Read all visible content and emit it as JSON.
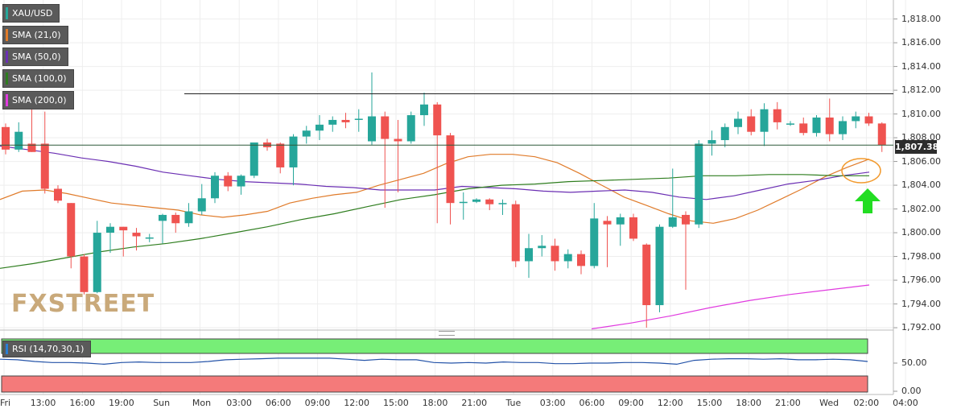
{
  "chart_data": {
    "type": "candlestick",
    "symbol": "XAU/USD",
    "legend": [
      {
        "label": "XAU/USD",
        "color": "#26a69a"
      },
      {
        "label": "SMA (21,0)",
        "color": "#e07b2a"
      },
      {
        "label": "SMA (50,0)",
        "color": "#6b2fb3"
      },
      {
        "label": "SMA (100,0)",
        "color": "#2e7d1e"
      },
      {
        "label": "SMA (200,0)",
        "color": "#e03adf"
      }
    ],
    "x_ticks": [
      "Fri",
      "13:00",
      "16:00",
      "19:00",
      "Sun",
      "Mon",
      "03:00",
      "06:00",
      "09:00",
      "12:00",
      "15:00",
      "18:00",
      "21:00",
      "Tue",
      "03:00",
      "06:00",
      "09:00",
      "12:00",
      "15:00",
      "18:00",
      "21:00",
      "Wed",
      "02:00",
      "04:00"
    ],
    "y_ticks": [
      "1,818.00",
      "1,816.00",
      "1,814.00",
      "1,812.00",
      "1,810.00",
      "1,808.00",
      "1,806.00",
      "1,804.00",
      "1,802.00",
      "1,800.00",
      "1,798.00",
      "1,796.00",
      "1,794.00",
      "1,792.00"
    ],
    "ylim": [
      1791.8,
      1819.6
    ],
    "last_price": "1,807.38",
    "resistance": 1811.7,
    "candles": [
      [
        1808.9,
        1809.2,
        1806.6,
        1807.0
      ],
      [
        1807.0,
        1809.3,
        1806.8,
        1808.5
      ],
      [
        1807.5,
        1810.8,
        1806.8,
        1806.8
      ],
      [
        1807.5,
        1810.2,
        1803.3,
        1803.7
      ],
      [
        1803.7,
        1804.0,
        1802.5,
        1802.7
      ],
      [
        1802.5,
        1802.5,
        1797.0,
        1798.0
      ],
      [
        1798.0,
        1798.2,
        1794.8,
        1795.0
      ],
      [
        1795.0,
        1801.0,
        1794.9,
        1800.0
      ],
      [
        1800.0,
        1800.8,
        1798.3,
        1800.5
      ],
      [
        1800.5,
        1800.5,
        1798.0,
        1800.2
      ],
      [
        1800.0,
        1800.4,
        1798.5,
        1799.7
      ],
      [
        1799.5,
        1799.9,
        1799.2,
        1799.6
      ],
      [
        1801.0,
        1801.6,
        1799.1,
        1801.5
      ],
      [
        1801.5,
        1801.7,
        1800.0,
        1800.8
      ],
      [
        1800.8,
        1802.5,
        1800.5,
        1801.8
      ],
      [
        1801.8,
        1804.1,
        1801.5,
        1802.9
      ],
      [
        1802.9,
        1805.1,
        1802.5,
        1804.8
      ],
      [
        1804.8,
        1805.1,
        1803.5,
        1803.9
      ],
      [
        1803.9,
        1804.9,
        1803.2,
        1804.8
      ],
      [
        1804.8,
        1807.6,
        1804.6,
        1807.6
      ],
      [
        1807.6,
        1807.9,
        1806.9,
        1807.2
      ],
      [
        1807.5,
        1807.6,
        1805.0,
        1805.5
      ],
      [
        1805.5,
        1808.3,
        1804.0,
        1808.1
      ],
      [
        1808.1,
        1809.0,
        1807.5,
        1808.6
      ],
      [
        1808.6,
        1809.9,
        1807.8,
        1809.1
      ],
      [
        1809.1,
        1809.8,
        1808.5,
        1809.5
      ],
      [
        1809.5,
        1810.1,
        1808.8,
        1809.3
      ],
      [
        1809.5,
        1810.4,
        1808.5,
        1809.6
      ],
      [
        1807.7,
        1813.5,
        1807.4,
        1809.8
      ],
      [
        1809.8,
        1810.2,
        1802.1,
        1807.9
      ],
      [
        1807.9,
        1809.5,
        1803.4,
        1807.7
      ],
      [
        1807.7,
        1810.2,
        1807.5,
        1809.9
      ],
      [
        1809.9,
        1811.8,
        1809.0,
        1810.8
      ],
      [
        1810.8,
        1811.0,
        1800.8,
        1808.2
      ],
      [
        1808.2,
        1808.4,
        1800.7,
        1802.5
      ],
      [
        1802.6,
        1803.4,
        1801.1,
        1802.6
      ],
      [
        1802.6,
        1802.9,
        1802.5,
        1802.8
      ],
      [
        1802.8,
        1802.9,
        1801.9,
        1802.4
      ],
      [
        1802.4,
        1802.8,
        1801.5,
        1802.5
      ],
      [
        1802.4,
        1802.7,
        1797.1,
        1797.6
      ],
      [
        1797.6,
        1799.9,
        1796.2,
        1798.7
      ],
      [
        1798.7,
        1799.8,
        1798.0,
        1798.9
      ],
      [
        1798.9,
        1799.5,
        1796.8,
        1797.6
      ],
      [
        1797.6,
        1798.6,
        1797.0,
        1798.2
      ],
      [
        1798.2,
        1798.5,
        1796.5,
        1797.2
      ],
      [
        1797.2,
        1802.5,
        1797.0,
        1801.2
      ],
      [
        1801.0,
        1801.4,
        1797.1,
        1800.7
      ],
      [
        1800.7,
        1801.6,
        1798.9,
        1801.3
      ],
      [
        1801.3,
        1801.6,
        1799.3,
        1799.5
      ],
      [
        1799.0,
        1799.1,
        1792.0,
        1793.9
      ],
      [
        1793.9,
        1800.7,
        1793.3,
        1800.5
      ],
      [
        1800.5,
        1805.4,
        1800.4,
        1801.3
      ],
      [
        1801.5,
        1801.8,
        1795.2,
        1800.7
      ],
      [
        1800.7,
        1807.8,
        1800.4,
        1807.5
      ],
      [
        1807.5,
        1808.6,
        1806.5,
        1807.8
      ],
      [
        1807.8,
        1809.2,
        1807.2,
        1808.9
      ],
      [
        1808.9,
        1810.2,
        1808.3,
        1809.6
      ],
      [
        1809.8,
        1810.4,
        1808.2,
        1808.5
      ],
      [
        1808.5,
        1810.9,
        1807.3,
        1810.4
      ],
      [
        1810.4,
        1811.0,
        1808.7,
        1809.3
      ],
      [
        1809.2,
        1809.4,
        1809.0,
        1809.2
      ],
      [
        1809.2,
        1809.7,
        1808.2,
        1808.4
      ],
      [
        1808.4,
        1809.9,
        1808.1,
        1809.7
      ],
      [
        1809.7,
        1811.3,
        1807.7,
        1808.3
      ],
      [
        1808.3,
        1809.8,
        1807.8,
        1809.4
      ],
      [
        1809.4,
        1810.2,
        1808.8,
        1809.8
      ],
      [
        1809.8,
        1810.1,
        1809.0,
        1809.2
      ],
      [
        1809.2,
        1809.3,
        1806.8,
        1807.4
      ]
    ],
    "sma21": [
      1802.8,
      1803.5,
      1803.6,
      1803.3,
      1802.9,
      1802.5,
      1802.3,
      1802.1,
      1801.9,
      1801.5,
      1801.3,
      1801.5,
      1801.8,
      1802.5,
      1802.9,
      1803.2,
      1803.4,
      1804.0,
      1804.5,
      1805.0,
      1805.8,
      1806.4,
      1806.6,
      1806.6,
      1806.4,
      1805.9,
      1805.0,
      1804.0,
      1803.0,
      1802.3,
      1801.6,
      1801.0,
      1800.8,
      1801.2,
      1801.9,
      1802.8,
      1803.7,
      1804.7,
      1805.5,
      1806.2
    ],
    "sma50": [
      1807.3,
      1807.0,
      1806.7,
      1806.3,
      1806.0,
      1805.6,
      1805.1,
      1804.8,
      1804.5,
      1804.3,
      1804.2,
      1804.1,
      1803.9,
      1803.8,
      1803.6,
      1803.6,
      1803.6,
      1803.9,
      1803.8,
      1803.7,
      1803.5,
      1803.4,
      1803.5,
      1803.6,
      1803.4,
      1803.0,
      1802.8,
      1803.1,
      1803.6,
      1804.1,
      1804.4,
      1804.8,
      1805.1
    ],
    "sma100": [
      1797.0,
      1797.4,
      1797.9,
      1798.4,
      1798.8,
      1799.1,
      1799.5,
      1800.0,
      1800.5,
      1801.1,
      1801.6,
      1802.2,
      1802.8,
      1803.2,
      1803.7,
      1804.0,
      1804.1,
      1804.3,
      1804.4,
      1804.5,
      1804.6,
      1804.8,
      1804.8,
      1804.9,
      1804.9,
      1804.8,
      1804.8
    ],
    "sma200": [
      1791.9,
      1792.4,
      1793.0,
      1793.7,
      1794.3,
      1794.8,
      1795.2,
      1795.6
    ],
    "rsi_ticks": [
      "50.00",
      "0.00"
    ],
    "rsi_label": "RSI (14,70,30,1)",
    "rsi": [
      57,
      56,
      53,
      51,
      51,
      50,
      48,
      51,
      52,
      51,
      51,
      51,
      53,
      56,
      57,
      58,
      59,
      59,
      59,
      59,
      57,
      55,
      57,
      56,
      56,
      51,
      50,
      51,
      50,
      52,
      51,
      51,
      49,
      49,
      50,
      50,
      51,
      51,
      50,
      48,
      55,
      57,
      58,
      58,
      57,
      58,
      56,
      56,
      57,
      56,
      53
    ],
    "watermark": "FXSTREET"
  }
}
